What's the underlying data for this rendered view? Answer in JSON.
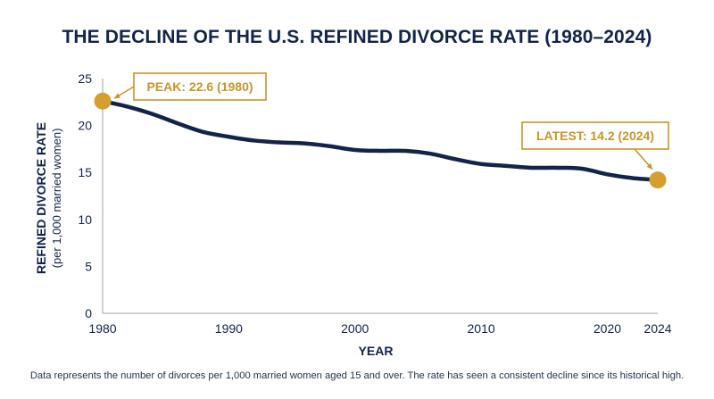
{
  "chart_data": {
    "type": "line",
    "title": "THE DECLINE OF THE U.S. REFINED DIVORCE RATE (1980–2024)",
    "xlabel": "YEAR",
    "ylabel": "REFINED DIVORCE RATE",
    "ylabel_sub": "(per 1,000 married women)",
    "xlim": [
      1980,
      2024
    ],
    "ylim": [
      0,
      25
    ],
    "x_ticks": [
      1980,
      1990,
      2000,
      2010,
      2020,
      2024
    ],
    "y_ticks": [
      0,
      5,
      10,
      15,
      20,
      25
    ],
    "grid": false,
    "series": [
      {
        "x": [
          1980,
          1982,
          1984,
          1986,
          1988,
          1990,
          1992,
          1994,
          1996,
          1998,
          2000,
          2002,
          2004,
          2006,
          2008,
          2010,
          2012,
          2014,
          2016,
          2018,
          2020,
          2022,
          2024
        ],
        "values": [
          22.6,
          22.0,
          21.2,
          20.2,
          19.3,
          18.8,
          18.4,
          18.2,
          18.1,
          17.8,
          17.4,
          17.3,
          17.3,
          17.0,
          16.4,
          15.9,
          15.7,
          15.5,
          15.5,
          15.4,
          14.8,
          14.4,
          14.2
        ]
      }
    ],
    "annotations": [
      {
        "label": "PEAK: 22.6 (1980)",
        "x": 1980,
        "y": 22.6
      },
      {
        "label": "LATEST: 14.2 (2024)",
        "x": 2024,
        "y": 14.2
      }
    ],
    "colors": {
      "line": "#13244a",
      "marker": "#d69e2e",
      "annotation": "#c99529",
      "axis": "#9aa0a8"
    }
  },
  "footnote": "Data represents the number of divorces per 1,000 married women aged 15 and over. The rate has seen a consistent decline since its historical high."
}
